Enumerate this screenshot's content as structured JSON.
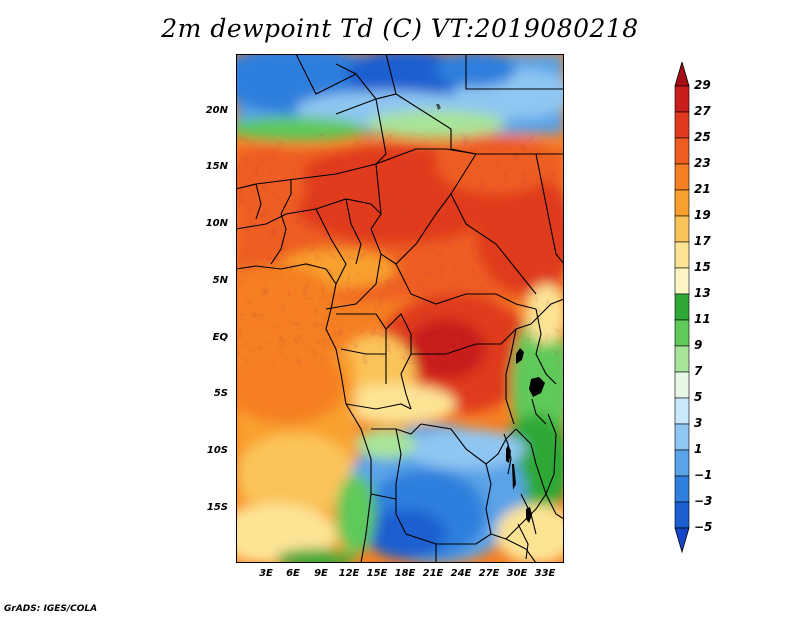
{
  "title": "2m dewpoint Td (C) VT:2019080218",
  "footer": "GrADS: IGES/COLA",
  "map": {
    "lat_labels": [
      "20N",
      "15N",
      "10N",
      "5N",
      "EQ",
      "5S",
      "10S",
      "15S"
    ],
    "lon_labels": [
      "3E",
      "6E",
      "9E",
      "12E",
      "15E",
      "18E",
      "21E",
      "24E",
      "27E",
      "30E",
      "33E"
    ]
  },
  "colorbar": {
    "levels": [
      "29",
      "27",
      "25",
      "23",
      "21",
      "19",
      "17",
      "15",
      "13",
      "11",
      "9",
      "7",
      "5",
      "3",
      "1",
      "−1",
      "−3",
      "−5"
    ],
    "colors": [
      "#a50f15",
      "#c81d1d",
      "#e03a1c",
      "#ee5d20",
      "#f57f23",
      "#f9a12e",
      "#fbc45a",
      "#fde495",
      "#fdf6c4",
      "#2ea836",
      "#5fc95a",
      "#a8e49a",
      "#e6f7e6",
      "#c9e8fb",
      "#8fc6f2",
      "#5aa3e8",
      "#2f7fdd",
      "#1c5fd0",
      "#1446c5"
    ],
    "top_color": "#a50f15",
    "bottom_color": "#1446c5"
  }
}
